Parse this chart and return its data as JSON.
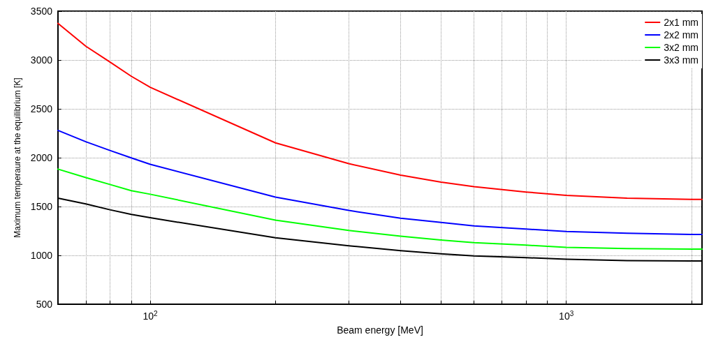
{
  "chart_data": {
    "type": "line",
    "xlabel": "Beam energy [MeV]",
    "ylabel": "Maximum temperaure at the equilibrium [K]",
    "x": [
      60,
      70,
      80,
      90,
      100,
      200,
      300,
      400,
      500,
      600,
      800,
      1000,
      1400,
      2000,
      2120
    ],
    "series": [
      {
        "name": "2x1 mm",
        "color": "#ff0000",
        "values": [
          3375,
          3141,
          2980,
          2834,
          2720,
          2152,
          1939,
          1821,
          1750,
          1703,
          1649,
          1614,
          1585,
          1574,
          1574
        ]
      },
      {
        "name": "2x2 mm",
        "color": "#0000ff",
        "values": [
          2279,
          2163,
          2074,
          1998,
          1932,
          1596,
          1460,
          1380,
          1337,
          1301,
          1270,
          1244,
          1226,
          1215,
          1215
        ]
      },
      {
        "name": "3x2 mm",
        "color": "#00ff00",
        "values": [
          1883,
          1797,
          1726,
          1663,
          1626,
          1361,
          1255,
          1196,
          1158,
          1131,
          1105,
          1083,
          1070,
          1064,
          1064
        ]
      },
      {
        "name": "3x3 mm",
        "color": "#000000",
        "values": [
          1586,
          1527,
          1467,
          1420,
          1385,
          1180,
          1098,
          1048,
          1016,
          994,
          977,
          961,
          947,
          942,
          942
        ]
      }
    ],
    "log": "x",
    "xlim": [
      60,
      2120
    ],
    "xticks": [
      {
        "value": 60,
        "label": null
      },
      {
        "value": 70,
        "label": null
      },
      {
        "value": 80,
        "label": null
      },
      {
        "value": 90,
        "label": null
      },
      {
        "value": 100,
        "label": "10$^{2}$"
      },
      {
        "value": 200,
        "label": null
      },
      {
        "value": 300,
        "label": null
      },
      {
        "value": 400,
        "label": null
      },
      {
        "value": 500,
        "label": null
      },
      {
        "value": 600,
        "label": null
      },
      {
        "value": 700,
        "label": null
      },
      {
        "value": 800,
        "label": null
      },
      {
        "value": 900,
        "label": null
      },
      {
        "value": 1000,
        "label": "10$^{3}$"
      },
      {
        "value": 2000,
        "label": null
      }
    ],
    "ylim": [
      500,
      3500
    ],
    "yticks": [
      500,
      1000,
      1500,
      2000,
      2500,
      3000,
      3500
    ],
    "grid": true,
    "legend": "top right",
    "marker": "none",
    "line_style": "solid"
  }
}
